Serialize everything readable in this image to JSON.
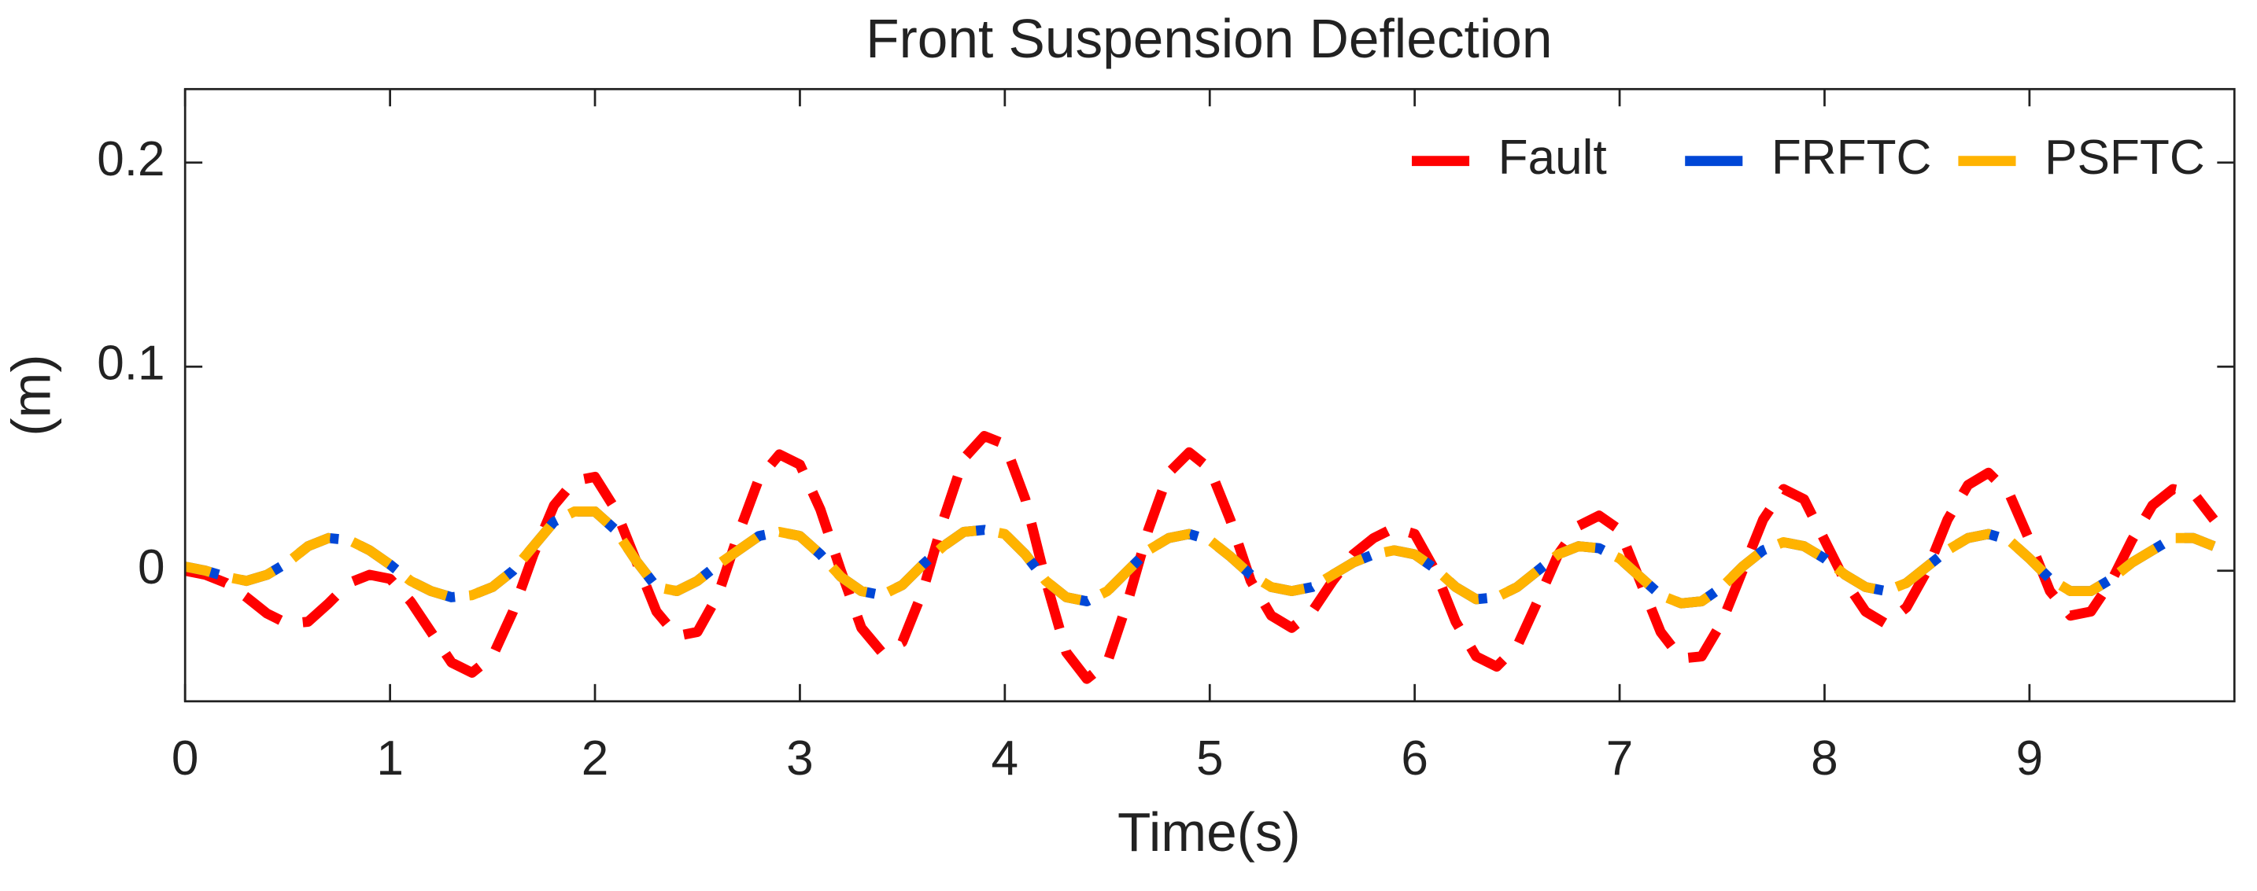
{
  "chart_data": {
    "type": "line",
    "title": "Front Suspension Deflection",
    "xlabel": "Time(s)",
    "ylabel": "(m)",
    "x": [
      0,
      0.1,
      0.2,
      0.3,
      0.4,
      0.5,
      0.6,
      0.7,
      0.8,
      0.9,
      1,
      1.1,
      1.2,
      1.3,
      1.4,
      1.5,
      1.6,
      1.7,
      1.8,
      1.9,
      2,
      2.1,
      2.2,
      2.3,
      2.4,
      2.5,
      2.6,
      2.7,
      2.8,
      2.9,
      3,
      3.1,
      3.2,
      3.3,
      3.4,
      3.5,
      3.6,
      3.7,
      3.8,
      3.9,
      4,
      4.1,
      4.2,
      4.3,
      4.4,
      4.5,
      4.6,
      4.7,
      4.8,
      4.9,
      5,
      5.1,
      5.2,
      5.3,
      5.4,
      5.5,
      5.6,
      5.7,
      5.8,
      5.9,
      6,
      6.1,
      6.2,
      6.3,
      6.4,
      6.5,
      6.6,
      6.7,
      6.8,
      6.9,
      7,
      7.1,
      7.2,
      7.3,
      7.4,
      7.5,
      7.6,
      7.7,
      7.8,
      7.9,
      8,
      8.1,
      8.2,
      8.3,
      8.4,
      8.5,
      8.6,
      8.7,
      8.8,
      8.9,
      9,
      9.1,
      9.2,
      9.3,
      9.4,
      9.5,
      9.6,
      9.7,
      9.8,
      9.9
    ],
    "series": [
      {
        "name": "Fault",
        "color": "#ff0000",
        "values": [
          0,
          -0.002,
          -0.006,
          -0.013,
          -0.021,
          -0.026,
          -0.025,
          -0.016,
          -0.006,
          -0.002,
          -0.004,
          -0.015,
          -0.03,
          -0.045,
          -0.05,
          -0.042,
          -0.02,
          0.008,
          0.032,
          0.044,
          0.046,
          0.03,
          0.005,
          -0.02,
          -0.032,
          -0.03,
          -0.012,
          0.018,
          0.045,
          0.057,
          0.052,
          0.03,
          0,
          -0.028,
          -0.04,
          -0.035,
          -0.01,
          0.025,
          0.055,
          0.066,
          0.062,
          0.035,
          -0.005,
          -0.04,
          -0.053,
          -0.045,
          -0.015,
          0.02,
          0.048,
          0.058,
          0.05,
          0.025,
          -0.005,
          -0.022,
          -0.028,
          -0.02,
          -0.005,
          0.008,
          0.016,
          0.021,
          0.018,
          0,
          -0.025,
          -0.042,
          -0.047,
          -0.037,
          -0.015,
          0.008,
          0.022,
          0.027,
          0.02,
          -0.005,
          -0.03,
          -0.043,
          -0.042,
          -0.025,
          0,
          0.025,
          0.04,
          0.035,
          0.015,
          -0.005,
          -0.02,
          -0.026,
          -0.018,
          0,
          0.025,
          0.042,
          0.048,
          0.038,
          0.015,
          -0.01,
          -0.022,
          -0.02,
          -0.005,
          0.015,
          0.032,
          0.04,
          0.038,
          0.025
        ]
      },
      {
        "name": "FRFTC",
        "color": "#0047d6",
        "values": [
          0.002,
          0,
          -0.003,
          -0.005,
          -0.002,
          0.004,
          0.012,
          0.016,
          0.015,
          0.01,
          0.003,
          -0.005,
          -0.01,
          -0.013,
          -0.012,
          -0.008,
          0,
          0.012,
          0.024,
          0.029,
          0.029,
          0.02,
          0.005,
          -0.008,
          -0.01,
          -0.005,
          0.003,
          0.01,
          0.017,
          0.019,
          0.017,
          0.008,
          -0.003,
          -0.01,
          -0.012,
          -0.007,
          0.003,
          0.012,
          0.019,
          0.02,
          0.018,
          0.008,
          -0.005,
          -0.013,
          -0.015,
          -0.01,
          0,
          0.01,
          0.016,
          0.018,
          0.015,
          0.007,
          -0.002,
          -0.008,
          -0.01,
          -0.008,
          -0.002,
          0.004,
          0.008,
          0.01,
          0.008,
          0.001,
          -0.008,
          -0.014,
          -0.013,
          -0.008,
          0,
          0.008,
          0.012,
          0.011,
          0.006,
          -0.003,
          -0.012,
          -0.016,
          -0.015,
          -0.008,
          0.002,
          0.01,
          0.014,
          0.012,
          0.006,
          -0.002,
          -0.008,
          -0.01,
          -0.006,
          0.002,
          0.01,
          0.016,
          0.018,
          0.015,
          0.006,
          -0.004,
          -0.01,
          -0.01,
          -0.004,
          0.004,
          0.01,
          0.016,
          0.016,
          0.012
        ]
      },
      {
        "name": "PSFTC",
        "color": "#ffb300",
        "values": [
          0.002,
          0,
          -0.003,
          -0.005,
          -0.002,
          0.004,
          0.012,
          0.016,
          0.015,
          0.01,
          0.003,
          -0.005,
          -0.01,
          -0.013,
          -0.012,
          -0.008,
          0,
          0.012,
          0.024,
          0.029,
          0.029,
          0.02,
          0.005,
          -0.008,
          -0.01,
          -0.005,
          0.003,
          0.01,
          0.017,
          0.019,
          0.017,
          0.008,
          -0.003,
          -0.01,
          -0.012,
          -0.007,
          0.003,
          0.012,
          0.019,
          0.02,
          0.018,
          0.008,
          -0.005,
          -0.013,
          -0.015,
          -0.01,
          0,
          0.01,
          0.016,
          0.018,
          0.015,
          0.007,
          -0.002,
          -0.008,
          -0.01,
          -0.008,
          -0.002,
          0.004,
          0.008,
          0.01,
          0.008,
          0.001,
          -0.008,
          -0.014,
          -0.013,
          -0.008,
          0,
          0.008,
          0.012,
          0.011,
          0.006,
          -0.003,
          -0.012,
          -0.016,
          -0.015,
          -0.008,
          0.002,
          0.01,
          0.014,
          0.012,
          0.006,
          -0.002,
          -0.008,
          -0.01,
          -0.006,
          0.002,
          0.01,
          0.016,
          0.018,
          0.015,
          0.006,
          -0.004,
          -0.01,
          -0.01,
          -0.004,
          0.004,
          0.01,
          0.016,
          0.016,
          0.012
        ]
      }
    ],
    "xlim": [
      0,
      10
    ],
    "xticks": [
      0,
      1,
      2,
      3,
      4,
      5,
      6,
      7,
      8,
      9
    ],
    "ylim": [
      -0.064,
      0.236
    ],
    "yticks": [
      0,
      0.1,
      0.2
    ],
    "legend": "upper right",
    "grid": false
  }
}
